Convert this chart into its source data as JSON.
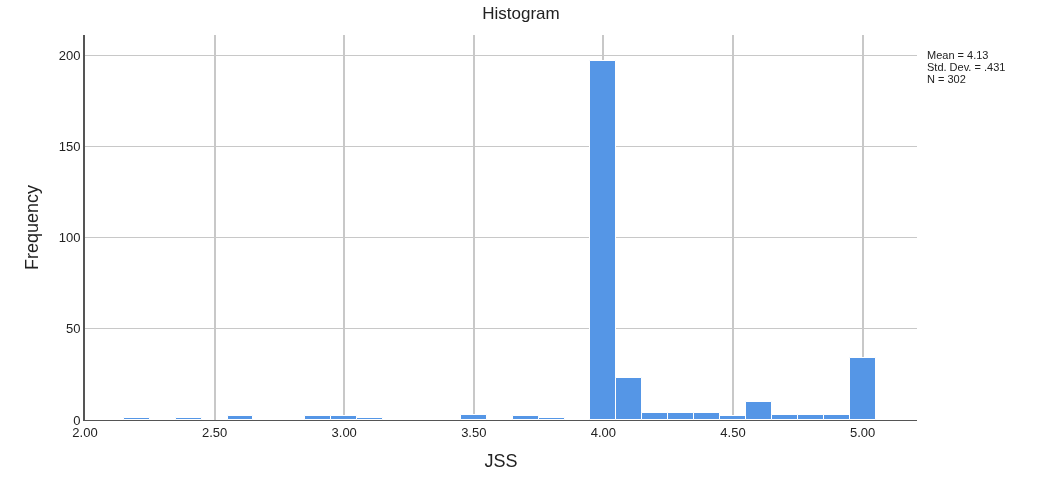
{
  "chart_data": {
    "type": "histogram",
    "title": "Histogram",
    "xlabel": "JSS",
    "ylabel": "Frequency",
    "bins": [
      2.15,
      2.25,
      2.35,
      2.45,
      2.55,
      2.65,
      2.75,
      2.85,
      2.95,
      3.05,
      3.15,
      3.25,
      3.35,
      3.45,
      3.55,
      3.65,
      3.75,
      3.85,
      3.95,
      4.05,
      4.15,
      4.25,
      4.35,
      4.45,
      4.55,
      4.65,
      4.75,
      4.85,
      4.95,
      5.05
    ],
    "values": [
      1,
      0,
      1,
      0,
      2,
      0,
      0,
      2,
      2,
      1,
      0,
      0,
      0,
      3,
      0,
      2,
      1,
      0,
      197,
      23,
      4,
      4,
      4,
      2,
      10,
      3,
      3,
      3,
      34
    ],
    "color": "#5596e6",
    "xlim": [
      2.0,
      5.21
    ],
    "xticks": [
      {
        "value": 2.0,
        "label": "2.00"
      },
      {
        "value": 2.5,
        "label": "2.50"
      },
      {
        "value": 3.0,
        "label": "3.00"
      },
      {
        "value": 3.5,
        "label": "3.50"
      },
      {
        "value": 4.0,
        "label": "4.00"
      },
      {
        "value": 4.5,
        "label": "4.50"
      },
      {
        "value": 5.0,
        "label": "5.00"
      }
    ],
    "ylim": [
      0,
      211
    ],
    "yticks": [
      0,
      50,
      100,
      150,
      200
    ],
    "grid": true,
    "annotations": [
      "Mean = 4.13",
      "Std. Dev. = .431",
      "N = 302"
    ]
  }
}
